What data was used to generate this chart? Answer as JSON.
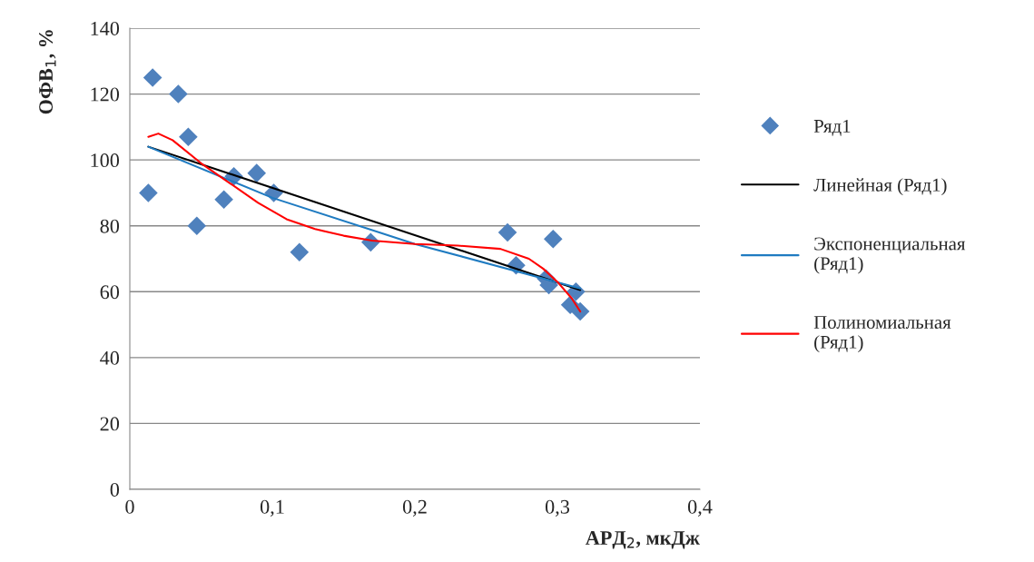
{
  "chart_data": {
    "type": "scatter",
    "xlabel": "АРД$_{2}$, мкДж",
    "ylabel": "ОФВ$_{1}$, %",
    "xlim": [
      0,
      0.4
    ],
    "ylim": [
      0,
      140
    ],
    "xticks": [
      0,
      {
        "value": 0.1,
        "label": "0,1"
      },
      {
        "value": 0.2,
        "label": "0,2"
      },
      {
        "value": 0.3,
        "label": "0,3"
      },
      {
        "value": 0.4,
        "label": "0,4"
      }
    ],
    "yticks": [
      0,
      20,
      40,
      60,
      80,
      100,
      120,
      140
    ],
    "grid": "y",
    "legend": "right",
    "marker": "diamond",
    "series": [
      {
        "name": "Ряд1",
        "color": "#4f81bd",
        "x": [
          0.016,
          0.034,
          0.041,
          0.013,
          0.047,
          0.066,
          0.073,
          0.089,
          0.101,
          0.119,
          0.169,
          0.265,
          0.271,
          0.297,
          0.292,
          0.294,
          0.313,
          0.309,
          0.316
        ],
        "values": [
          125,
          120,
          107,
          90,
          80,
          88,
          95,
          96,
          90,
          72,
          75,
          78,
          68,
          76,
          64,
          62,
          60,
          56,
          54
        ]
      },
      {
        "name": "Линейная (Ряд1)",
        "type": "line",
        "marker": "none",
        "color": "#000000",
        "x": [
          0.013,
          0.316
        ],
        "values": [
          104,
          60.5
        ]
      },
      {
        "name": "Экспоненциальная (Ряд1)",
        "type": "line",
        "marker": "none",
        "color": "#1f7bc1",
        "x": [
          0.013,
          0.1,
          0.2,
          0.316
        ],
        "values": [
          104,
          88.5,
          74.5,
          61
        ]
      },
      {
        "name": "Полиномиальная (Ряд1)",
        "type": "line",
        "marker": "none",
        "color": "#ff0000",
        "x": [
          0.013,
          0.02,
          0.03,
          0.05,
          0.07,
          0.09,
          0.11,
          0.13,
          0.15,
          0.17,
          0.2,
          0.23,
          0.26,
          0.28,
          0.29,
          0.3,
          0.31,
          0.316
        ],
        "values": [
          107,
          108,
          106,
          99,
          93,
          87,
          82,
          79,
          77,
          75.5,
          74.5,
          74,
          73,
          70,
          67,
          63,
          58,
          54
        ]
      }
    ]
  }
}
